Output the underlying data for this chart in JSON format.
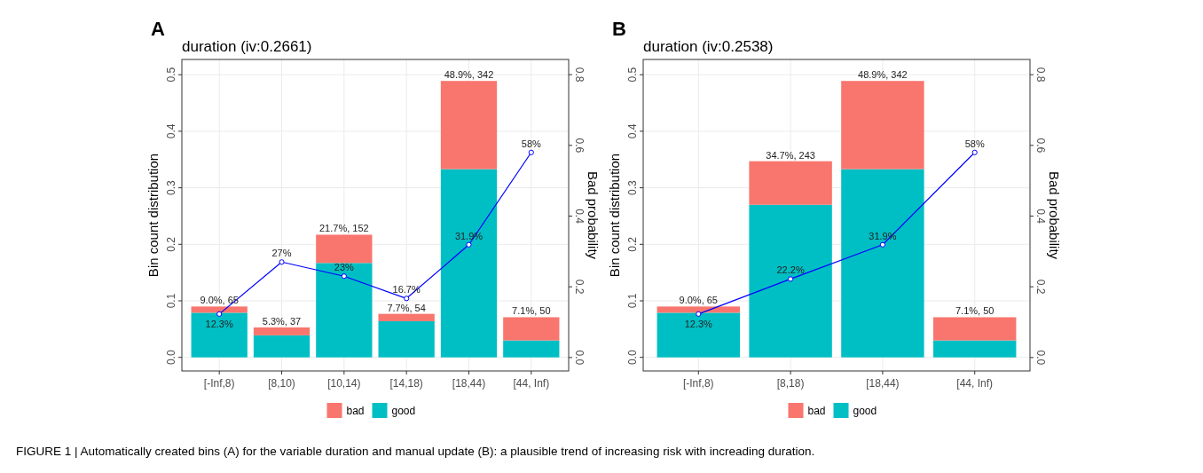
{
  "chart_data": [
    {
      "type": "bar",
      "title": "duration  (iv:0.2661)",
      "ylabel": "Bin count distribution",
      "y2label": "Bad probability",
      "annotations": [
        "A",
        "FIGURE 1 | Automatically created bins (A) for the variable duration and manual update (B): a plausible trend of increasing risk with increading duration."
      ],
      "categories": [
        "[-Inf,8)",
        "[8,10)",
        "[10,14)",
        "[14,18)",
        "[18,44)",
        "[44, Inf)"
      ],
      "totals": [
        "9.0%, 65",
        "5.3%, 37",
        "21.7%, 152",
        "7.7%, 54",
        "48.9%, 342",
        "7.1%, 50"
      ],
      "stacked": true,
      "legend": "bottom",
      "grid": true,
      "ylim": [
        -0.024,
        0.527
      ],
      "yticks": [
        {
          "value": 0,
          "label": "0.0"
        },
        {
          "value": 0.1,
          "label": "0.1"
        },
        {
          "value": 0.2,
          "label": "0.2"
        },
        {
          "value": 0.3,
          "label": "0.3"
        },
        {
          "value": 0.4,
          "label": "0.4"
        },
        {
          "value": 0.5,
          "label": "0.5"
        }
      ],
      "y2lim": [
        -0.038,
        0.843
      ],
      "y2ticks": [
        {
          "value": 0,
          "label": "0.0"
        },
        {
          "value": 0.2,
          "label": "0.2"
        },
        {
          "value": 0.4,
          "label": "0.4"
        },
        {
          "value": 0.6,
          "label": "0.6"
        },
        {
          "value": 0.8,
          "label": "0.8"
        }
      ],
      "series": [
        {
          "name": "good",
          "color": "#00bfc4",
          "values": [
            0.079,
            0.039,
            0.167,
            0.064,
            0.333,
            0.03
          ]
        },
        {
          "name": "bad",
          "color": "#f8766d",
          "values": [
            0.011,
            0.014,
            0.05,
            0.013,
            0.156,
            0.041
          ]
        },
        {
          "type": "line",
          "axis": "y2",
          "color": "#0000ff",
          "marker": "circle",
          "values": [
            0.123,
            0.27,
            0.23,
            0.167,
            0.319,
            0.58
          ],
          "value_labels": [
            "12.3%",
            "27%",
            "23%",
            "16.7%",
            "31.9%",
            "58%"
          ]
        }
      ]
    },
    {
      "type": "bar",
      "title": "duration  (iv:0.2538)",
      "ylabel": "Bin count distribution",
      "y2label": "Bad probability",
      "annotations": [
        "B"
      ],
      "categories": [
        "[-Inf,8)",
        "[8,18)",
        "[18,44)",
        "[44, Inf)"
      ],
      "totals": [
        "9.0%, 65",
        "34.7%, 243",
        "48.9%, 342",
        "7.1%, 50"
      ],
      "stacked": true,
      "legend": "bottom",
      "grid": true,
      "ylim": [
        -0.024,
        0.527
      ],
      "yticks": [
        {
          "value": 0,
          "label": "0.0"
        },
        {
          "value": 0.1,
          "label": "0.1"
        },
        {
          "value": 0.2,
          "label": "0.2"
        },
        {
          "value": 0.3,
          "label": "0.3"
        },
        {
          "value": 0.4,
          "label": "0.4"
        },
        {
          "value": 0.5,
          "label": "0.5"
        }
      ],
      "y2lim": [
        -0.038,
        0.843
      ],
      "y2ticks": [
        {
          "value": 0,
          "label": "0.0"
        },
        {
          "value": 0.2,
          "label": "0.2"
        },
        {
          "value": 0.4,
          "label": "0.4"
        },
        {
          "value": 0.6,
          "label": "0.6"
        },
        {
          "value": 0.8,
          "label": "0.8"
        }
      ],
      "series": [
        {
          "name": "good",
          "color": "#00bfc4",
          "values": [
            0.079,
            0.27,
            0.333,
            0.03
          ]
        },
        {
          "name": "bad",
          "color": "#f8766d",
          "values": [
            0.011,
            0.077,
            0.156,
            0.041
          ]
        },
        {
          "type": "line",
          "axis": "y2",
          "color": "#0000ff",
          "marker": "circle",
          "values": [
            0.123,
            0.222,
            0.319,
            0.58
          ],
          "value_labels": [
            "12.3%",
            "22.2%",
            "31.9%",
            "58%"
          ]
        }
      ]
    }
  ]
}
